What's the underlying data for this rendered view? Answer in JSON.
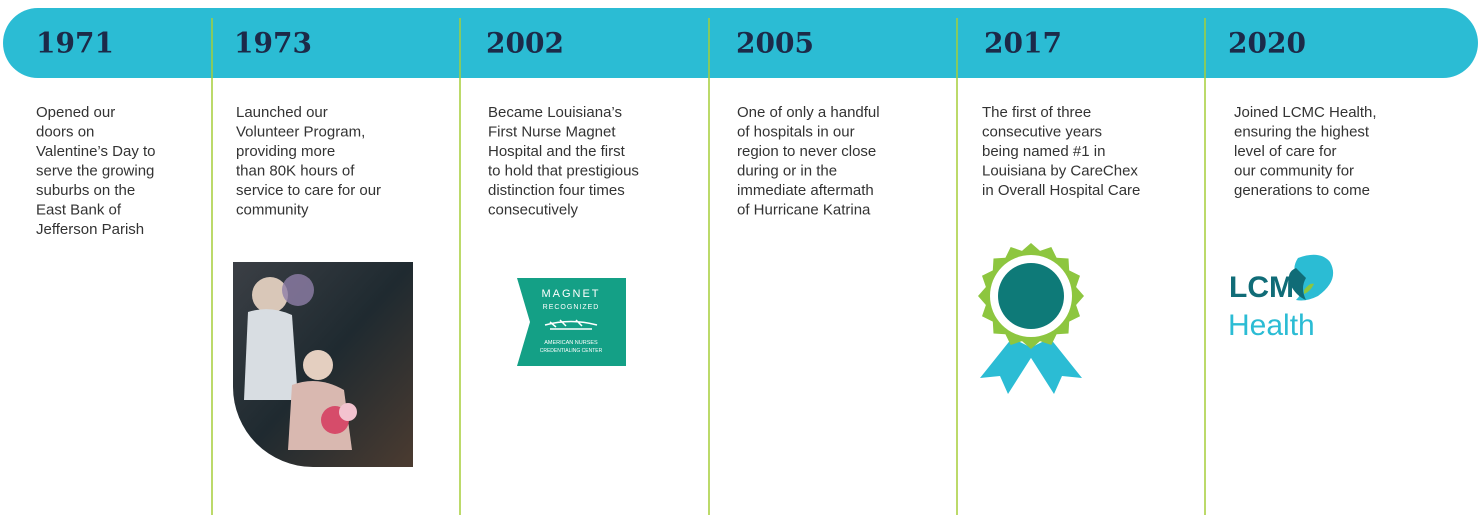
{
  "timeline": [
    {
      "year": "1971",
      "lines": [
        "Opened our",
        "doors on",
        "Valentine’s Day to",
        "serve the growing",
        "suburbs on the",
        "East Bank of",
        "Jefferson Parish"
      ]
    },
    {
      "year": "1973",
      "lines": [
        "Launched our",
        "Volunteer Program,",
        "providing more",
        "than 80K hours of",
        "service to care for our",
        "community"
      ]
    },
    {
      "year": "2002",
      "lines": [
        "Became Louisiana’s",
        "First Nurse Magnet",
        "Hospital and the first",
        "to hold that prestigious",
        "distinction four times",
        "consecutively"
      ]
    },
    {
      "year": "2005",
      "lines": [
        "One of only a handful",
        "of hospitals in our",
        "region to never close",
        "during or in the",
        "immediate aftermath",
        "of Hurricane Katrina"
      ]
    },
    {
      "year": "2017",
      "lines": [
        "The first of three",
        "consecutive years",
        "being named #1 in",
        "Louisiana by CareChex",
        "in Overall Hospital Care"
      ]
    },
    {
      "year": "2020",
      "lines": [
        "Joined LCMC Health,",
        "ensuring the highest",
        "level of care for",
        "our community for",
        "generations to come"
      ]
    }
  ],
  "magnet_logo": {
    "title": "MAGNET",
    "subtitle": "RECOGNIZED",
    "org_line1": "AMERICAN NURSES",
    "org_line2": "CREDENTIALING CENTER"
  },
  "lcmc_logo": {
    "line1": "LCMC",
    "line2": "Health"
  }
}
